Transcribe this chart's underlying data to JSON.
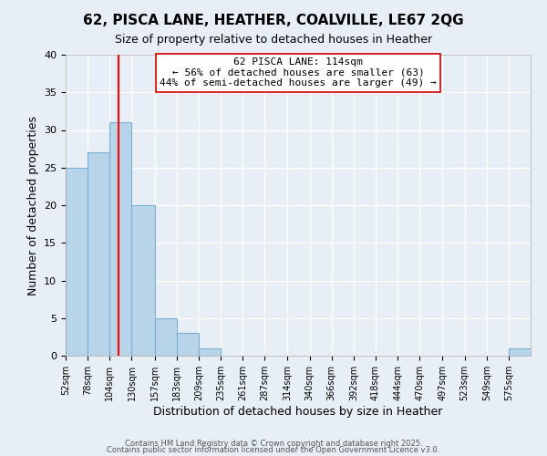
{
  "title": "62, PISCA LANE, HEATHER, COALVILLE, LE67 2QG",
  "subtitle": "Size of property relative to detached houses in Heather",
  "xlabel": "Distribution of detached houses by size in Heather",
  "ylabel": "Number of detached properties",
  "bin_edges": [
    52,
    78,
    104,
    130,
    157,
    183,
    209,
    235,
    261,
    287,
    314,
    340,
    366,
    392,
    418,
    444,
    470,
    497,
    523,
    549,
    575,
    601
  ],
  "bin_labels": [
    "52sqm",
    "78sqm",
    "104sqm",
    "130sqm",
    "157sqm",
    "183sqm",
    "209sqm",
    "235sqm",
    "261sqm",
    "287sqm",
    "314sqm",
    "340sqm",
    "366sqm",
    "392sqm",
    "418sqm",
    "444sqm",
    "470sqm",
    "497sqm",
    "523sqm",
    "549sqm",
    "575sqm"
  ],
  "counts": [
    25,
    27,
    31,
    20,
    5,
    3,
    1,
    0,
    0,
    0,
    0,
    0,
    0,
    0,
    0,
    0,
    0,
    0,
    0,
    0,
    1
  ],
  "bar_color": "#b8d4e8",
  "bar_edge_color": "#7bafd4",
  "red_line_x": 114,
  "ylim": [
    0,
    40
  ],
  "yticks": [
    0,
    5,
    10,
    15,
    20,
    25,
    30,
    35,
    40
  ],
  "annotation_title": "62 PISCA LANE: 114sqm",
  "annotation_line1": "← 56% of detached houses are smaller (63)",
  "annotation_line2": "44% of semi-detached houses are larger (49) →",
  "annotation_box_color": "#ffffff",
  "annotation_box_edge": "#cc0000",
  "background_color": "#e8eef5",
  "grid_color": "#ffffff",
  "footer_line1": "Contains HM Land Registry data © Crown copyright and database right 2025.",
  "footer_line2": "Contains public sector information licensed under the Open Government Licence v3.0."
}
